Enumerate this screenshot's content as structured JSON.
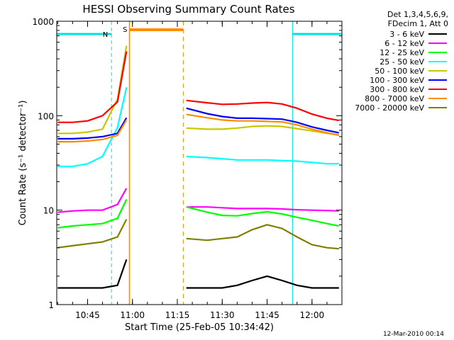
{
  "chart_data": {
    "type": "line",
    "title": "HESSI Observing Summary Count Rates",
    "xlabel": "Start Time (25-Feb-05 10:34:42)",
    "ylabel": "Count Rate (s⁻¹ detector⁻¹)",
    "yscale": "log",
    "ylim": [
      1,
      1000
    ],
    "xlim": [
      "10:34:42",
      "12:10:00"
    ],
    "x_ticks": [
      "10:45",
      "11:00",
      "11:15",
      "11:30",
      "11:45",
      "12:00"
    ],
    "y_ticks": [
      "1",
      "10",
      "100",
      "1000"
    ],
    "legend_header": [
      "Det 1,3,4,5,6,9,",
      "FDecim 1, Att 0"
    ],
    "legend_position": "top-right",
    "footer": "12-Mar-2010 00:14",
    "night_intervals": [
      {
        "start": "10:34:42",
        "end": "10:53:00",
        "label": "N"
      },
      {
        "start": "11:53:30",
        "end": "12:10:00",
        "label": ""
      }
    ],
    "saa_interval": {
      "start": "10:59:00",
      "end": "11:17:00",
      "label": "S"
    },
    "colors": {
      "night": "#00e0e0",
      "saa": "#ff8c00"
    },
    "series": [
      {
        "name": "3 - 6 keV",
        "color": "#000000",
        "x": [
          "10:35",
          "10:40",
          "10:45",
          "10:50",
          "10:55",
          "10:58",
          "11:18",
          "11:25",
          "11:30",
          "11:35",
          "11:40",
          "11:45",
          "11:50",
          "11:55",
          "12:00",
          "12:05",
          "12:09"
        ],
        "y": [
          1.5,
          1.5,
          1.5,
          1.5,
          1.6,
          3.0,
          1.5,
          1.5,
          1.5,
          1.6,
          1.8,
          2.0,
          1.8,
          1.6,
          1.5,
          1.5,
          1.5
        ]
      },
      {
        "name": "6 - 12 keV",
        "color": "#ff00ff",
        "x": [
          "10:35",
          "10:40",
          "10:45",
          "10:50",
          "10:55",
          "10:58",
          "11:18",
          "11:25",
          "11:30",
          "11:35",
          "11:40",
          "11:45",
          "11:50",
          "11:55",
          "12:00",
          "12:05",
          "12:09"
        ],
        "y": [
          9.5,
          9.8,
          10.0,
          10.0,
          11.5,
          17,
          10.8,
          10.8,
          10.6,
          10.4,
          10.4,
          10.4,
          10.3,
          10.1,
          10.0,
          9.9,
          9.8
        ]
      },
      {
        "name": "12 - 25 keV",
        "color": "#00ff00",
        "x": [
          "10:35",
          "10:40",
          "10:45",
          "10:50",
          "10:55",
          "10:58",
          "11:18",
          "11:25",
          "11:30",
          "11:35",
          "11:40",
          "11:45",
          "11:50",
          "11:55",
          "12:00",
          "12:05",
          "12:09"
        ],
        "y": [
          6.5,
          6.8,
          7.0,
          7.2,
          8.2,
          13,
          10.8,
          9.5,
          8.8,
          8.7,
          9.2,
          9.6,
          9.1,
          8.4,
          7.8,
          7.2,
          6.8
        ]
      },
      {
        "name": "25 - 50 keV",
        "color": "#00ffff",
        "x": [
          "10:35",
          "10:40",
          "10:45",
          "10:50",
          "10:55",
          "10:58",
          "11:18",
          "11:25",
          "11:30",
          "11:35",
          "11:40",
          "11:45",
          "11:50",
          "11:55",
          "12:00",
          "12:05",
          "12:09"
        ],
        "y": [
          29,
          29,
          31,
          37,
          75,
          200,
          37,
          36,
          35,
          34,
          34,
          34,
          33.5,
          33,
          32,
          31,
          31
        ]
      },
      {
        "name": "50 - 100 keV",
        "color": "#c8c800",
        "x": [
          "10:35",
          "10:40",
          "10:45",
          "10:50",
          "10:55",
          "10:58",
          "11:18",
          "11:25",
          "11:30",
          "11:35",
          "11:40",
          "11:45",
          "11:50",
          "11:55",
          "12:00",
          "12:05",
          "12:09"
        ],
        "y": [
          65,
          65,
          67,
          72,
          150,
          550,
          74,
          72,
          72,
          74,
          77,
          78,
          77,
          73,
          69,
          65,
          63
        ]
      },
      {
        "name": "100 - 300 keV",
        "color": "#0000ff",
        "x": [
          "10:35",
          "10:40",
          "10:45",
          "10:50",
          "10:55",
          "10:58",
          "11:18",
          "11:25",
          "11:30",
          "11:35",
          "11:40",
          "11:45",
          "11:50",
          "11:55",
          "12:00",
          "12:05",
          "12:09"
        ],
        "y": [
          57,
          57,
          58,
          60,
          65,
          95,
          120,
          105,
          98,
          94,
          94,
          93,
          92,
          85,
          76,
          70,
          66
        ]
      },
      {
        "name": "300 - 800 keV",
        "color": "#ff0000",
        "x": [
          "10:35",
          "10:40",
          "10:45",
          "10:50",
          "10:55",
          "10:58",
          "11:18",
          "11:25",
          "11:30",
          "11:35",
          "11:40",
          "11:45",
          "11:50",
          "11:55",
          "12:00",
          "12:05",
          "12:09"
        ],
        "y": [
          85,
          85,
          88,
          100,
          140,
          480,
          145,
          137,
          132,
          133,
          136,
          138,
          133,
          120,
          104,
          94,
          89
        ]
      },
      {
        "name": "800 - 7000 keV",
        "color": "#ff8c00",
        "x": [
          "10:35",
          "10:40",
          "10:45",
          "10:50",
          "10:55",
          "10:58",
          "11:18",
          "11:25",
          "11:30",
          "11:35",
          "11:40",
          "11:45",
          "11:50",
          "11:55",
          "12:00",
          "12:05",
          "12:09"
        ],
        "y": [
          53,
          53,
          54,
          56,
          62,
          90,
          103,
          95,
          90,
          88,
          88,
          87,
          86,
          80,
          72,
          66,
          62
        ]
      },
      {
        "name": "7000 - 20000 keV",
        "color": "#808000",
        "x": [
          "10:35",
          "10:40",
          "10:45",
          "10:50",
          "10:55",
          "10:58",
          "11:18",
          "11:25",
          "11:30",
          "11:35",
          "11:40",
          "11:45",
          "11:50",
          "11:55",
          "12:00",
          "12:05",
          "12:09"
        ],
        "y": [
          4.0,
          4.2,
          4.4,
          4.6,
          5.2,
          8.0,
          5.0,
          4.8,
          5.0,
          5.2,
          6.2,
          7.0,
          6.4,
          5.2,
          4.3,
          4.0,
          3.9
        ]
      }
    ]
  }
}
